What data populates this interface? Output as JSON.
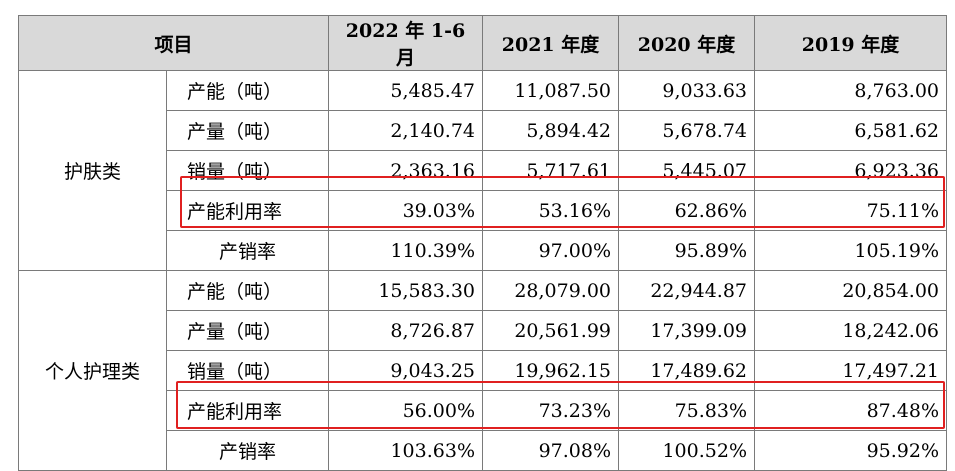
{
  "header": {
    "item": "项目",
    "cols": [
      "2022 年 1-6 月",
      "2021 年度",
      "2020 年度",
      "2019 年度"
    ]
  },
  "groups": [
    {
      "category": "护肤类",
      "rows": [
        {
          "label": "产能（吨）",
          "values": [
            "5,485.47",
            "11,087.50",
            "9,033.63",
            "8,763.00"
          ]
        },
        {
          "label": "产量（吨）",
          "values": [
            "2,140.74",
            "5,894.42",
            "5,678.74",
            "6,581.62"
          ]
        },
        {
          "label": "销量（吨）",
          "values": [
            "2,363.16",
            "5,717.61",
            "5,445.07",
            "6,923.36"
          ]
        },
        {
          "label": "产能利用率",
          "values": [
            "39.03%",
            "53.16%",
            "62.86%",
            "75.11%"
          ]
        },
        {
          "label": "产销率",
          "values": [
            "110.39%",
            "97.00%",
            "95.89%",
            "105.19%"
          ]
        }
      ]
    },
    {
      "category": "个人护理类",
      "rows": [
        {
          "label": "产能（吨）",
          "values": [
            "15,583.30",
            "28,079.00",
            "22,944.87",
            "20,854.00"
          ]
        },
        {
          "label": "产量（吨）",
          "values": [
            "8,726.87",
            "20,561.99",
            "17,399.09",
            "18,242.06"
          ]
        },
        {
          "label": "销量（吨）",
          "values": [
            "9,043.25",
            "19,962.15",
            "17,489.62",
            "17,497.21"
          ]
        },
        {
          "label": "产能利用率",
          "values": [
            "56.00%",
            "73.23%",
            "75.83%",
            "87.48%"
          ]
        },
        {
          "label": "产销率",
          "values": [
            "103.63%",
            "97.08%",
            "100.52%",
            "95.92%"
          ]
        }
      ]
    }
  ],
  "highlight_color": "#e02020",
  "header_bg": "#d9d9d9"
}
